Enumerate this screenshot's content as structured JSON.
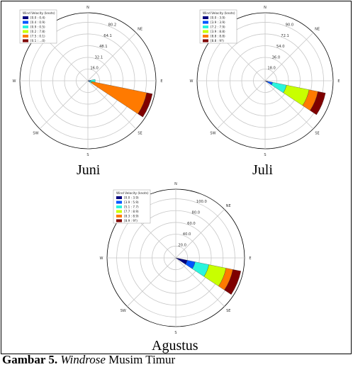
{
  "caption": {
    "label": "Gambar 5.",
    "title_italic": "Windrose",
    "title_rest": " Musim Timur"
  },
  "colors": {
    "bins": [
      "#00007f",
      "#0055ff",
      "#2af5dd",
      "#c8ff00",
      "#ff7a00",
      "#7f0000"
    ],
    "grid": "#c8c8c8",
    "axis": "#000000"
  },
  "chart_data": [
    {
      "type": "windrose",
      "month": "Juni",
      "directions": [
        "N",
        "NE",
        "E",
        "SE",
        "S",
        "SW",
        "W",
        "NW"
      ],
      "legend_title": "Wind Velocity (knots)",
      "bins": [
        "[0.0 : 0.4)",
        "[0.4 : 0.9)",
        "[0.9 : 0.5)",
        "[0.2 : 7.8)",
        "[7.5 : 0.1)",
        "[0.1 : ...0)"
      ],
      "rings": [
        "16.0",
        "32.1",
        "48.1",
        "64.1",
        "80.2"
      ],
      "rmax": 93,
      "petals": [
        {
          "direction_deg": 90,
          "cum": [
            1.5,
            3.5,
            10
          ]
        },
        {
          "direction_deg": 112.5,
          "cum": [
            1,
            2.5,
            5,
            6,
            82,
            90
          ]
        }
      ]
    },
    {
      "type": "windrose",
      "month": "Juli",
      "directions": [
        "N",
        "NE",
        "E",
        "SE",
        "S",
        "SW",
        "W",
        "NW"
      ],
      "legend_title": "Wind Velocity (knots)",
      "bins": [
        "[0.0 : 3.9)",
        "[3.9 : 3.9)",
        "[7.2 : 7.9)",
        "[3.9 : 8.8)",
        "[8.8 : 8.8)",
        "[8.8 : 9?)"
      ],
      "rings": [
        "18.0",
        "36.0",
        "54.0",
        "72.1",
        "90.0"
      ],
      "rmax": 106,
      "petals": [
        {
          "direction_deg": 112.5,
          "cum": [
            4,
            12,
            34,
            70,
            84,
            96
          ]
        }
      ]
    },
    {
      "type": "windrose",
      "month": "Agustus",
      "directions": [
        "N",
        "NE",
        "E",
        "SE",
        "S",
        "SW",
        "W",
        "NW"
      ],
      "legend_title": "Wind Velocity (knots)",
      "bins": [
        "[0.0 : 3.9)",
        "[3.9 : 5.9)",
        "[5.1 : 7.7)",
        "[7.7 : 8.9)",
        "[8.3 : 8.9)",
        "[8.9 : 9?)"
      ],
      "rings": [
        "20.0",
        "40.0",
        "60.0",
        "80.0",
        "100.0"
      ],
      "rmax": 118,
      "petals": [
        {
          "direction_deg": 112.5,
          "cum": [
            20,
            34,
            58,
            88,
            100,
            114
          ]
        }
      ]
    }
  ]
}
